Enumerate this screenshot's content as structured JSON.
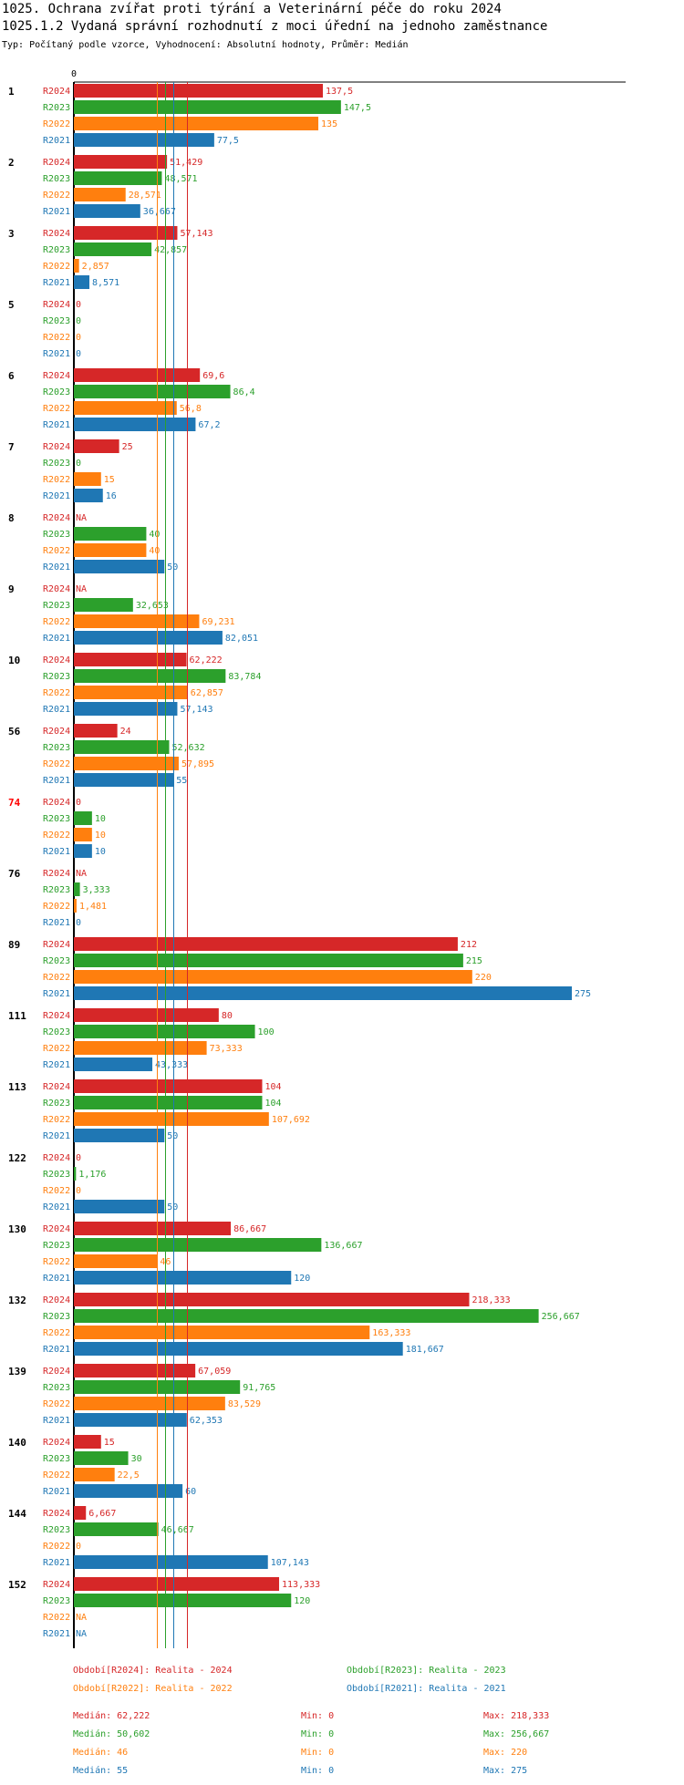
{
  "header": {
    "title": "1025. Ochrana zvířat proti týrání a Veterinární péče do roku 2024",
    "subtitle": "1025.1.2 Vydaná správní rozhodnutí z moci úřední na jednoho zaměstnance",
    "type_line": "Typ: Počítaný podle vzorce, Vyhodnocení: Absolutní hodnoty, Průměr: Medián"
  },
  "colors": {
    "R2024": "#d62728",
    "R2023": "#2ca02c",
    "R2022": "#ff7f0e",
    "R2021": "#1f77b4",
    "highlight_label": "#ff0000"
  },
  "chart_data": {
    "type": "bar",
    "orientation": "horizontal",
    "axis_zero_label": "0",
    "xlim": [
      0,
      275
    ],
    "series_names": [
      "R2024",
      "R2023",
      "R2022",
      "R2021"
    ],
    "categories": [
      "1",
      "2",
      "3",
      "5",
      "6",
      "7",
      "8",
      "9",
      "10",
      "56",
      "74",
      "76",
      "89",
      "111",
      "113",
      "122",
      "130",
      "132",
      "139",
      "140",
      "144",
      "152"
    ],
    "highlighted_category": "74",
    "values": [
      [
        137.5,
        147.5,
        135,
        77.5
      ],
      [
        51.429,
        48.571,
        28.571,
        36.667
      ],
      [
        57.143,
        42.857,
        2.857,
        8.571
      ],
      [
        0,
        0,
        0,
        0
      ],
      [
        69.6,
        86.4,
        56.8,
        67.2
      ],
      [
        25,
        0,
        15,
        16
      ],
      [
        null,
        40,
        40,
        50
      ],
      [
        null,
        32.653,
        69.231,
        82.051
      ],
      [
        62.222,
        83.784,
        62.857,
        57.143
      ],
      [
        24,
        52.632,
        57.895,
        55
      ],
      [
        0,
        10,
        10,
        10
      ],
      [
        null,
        3.333,
        1.481,
        0
      ],
      [
        212,
        215,
        220,
        275
      ],
      [
        80,
        100,
        73.333,
        43.333
      ],
      [
        104,
        104,
        107.692,
        50
      ],
      [
        0,
        1.176,
        0,
        50
      ],
      [
        86.667,
        136.667,
        46,
        120
      ],
      [
        218.333,
        256.667,
        163.333,
        181.667
      ],
      [
        67.059,
        91.765,
        83.529,
        62.353
      ],
      [
        15,
        30,
        22.5,
        60
      ],
      [
        6.667,
        46.667,
        0,
        107.143
      ],
      [
        113.333,
        120,
        null,
        null
      ]
    ],
    "value_labels": [
      [
        "137,5",
        "147,5",
        "135",
        "77,5"
      ],
      [
        "51,429",
        "48,571",
        "28,571",
        "36,667"
      ],
      [
        "57,143",
        "42,857",
        "2,857",
        "8,571"
      ],
      [
        "0",
        "0",
        "0",
        "0"
      ],
      [
        "69,6",
        "86,4",
        "56,8",
        "67,2"
      ],
      [
        "25",
        "0",
        "15",
        "16"
      ],
      [
        "NA",
        "40",
        "40",
        "50"
      ],
      [
        "NA",
        "32,653",
        "69,231",
        "82,051"
      ],
      [
        "62,222",
        "83,784",
        "62,857",
        "57,143"
      ],
      [
        "24",
        "52,632",
        "57,895",
        "55"
      ],
      [
        "0",
        "10",
        "10",
        "10"
      ],
      [
        "NA",
        "3,333",
        "1,481",
        "0"
      ],
      [
        "212",
        "215",
        "220",
        "275"
      ],
      [
        "80",
        "100",
        "73,333",
        "43,333"
      ],
      [
        "104",
        "104",
        "107,692",
        "50"
      ],
      [
        "0",
        "1,176",
        "0",
        "50"
      ],
      [
        "86,667",
        "136,667",
        "46",
        "120"
      ],
      [
        "218,333",
        "256,667",
        "163,333",
        "181,667"
      ],
      [
        "67,059",
        "91,765",
        "83,529",
        "62,353"
      ],
      [
        "15",
        "30",
        "22,5",
        "60"
      ],
      [
        "6,667",
        "46,667",
        "0",
        "107,143"
      ],
      [
        "113,333",
        "120",
        "NA",
        "NA"
      ]
    ],
    "median_lines": [
      {
        "series": "R2024",
        "value": 62.222
      },
      {
        "series": "R2023",
        "value": 50.602
      },
      {
        "series": "R2022",
        "value": 46
      },
      {
        "series": "R2021",
        "value": 55
      }
    ]
  },
  "legend": [
    {
      "series": "R2024",
      "label": "Období[R2024]: Realita - 2024"
    },
    {
      "series": "R2023",
      "label": "Období[R2023]: Realita - 2023"
    },
    {
      "series": "R2022",
      "label": "Období[R2022]: Realita - 2022"
    },
    {
      "series": "R2021",
      "label": "Období[R2021]: Realita - 2021"
    }
  ],
  "stats": [
    {
      "series": "R2024",
      "median": "Medián: 62,222",
      "min": "Min: 0",
      "max": "Max: 218,333"
    },
    {
      "series": "R2023",
      "median": "Medián: 50,602",
      "min": "Min: 0",
      "max": "Max: 256,667"
    },
    {
      "series": "R2022",
      "median": "Medián: 46",
      "min": "Min: 0",
      "max": "Max: 220"
    },
    {
      "series": "R2021",
      "median": "Medián: 55",
      "min": "Min: 0",
      "max": "Max: 275"
    }
  ]
}
